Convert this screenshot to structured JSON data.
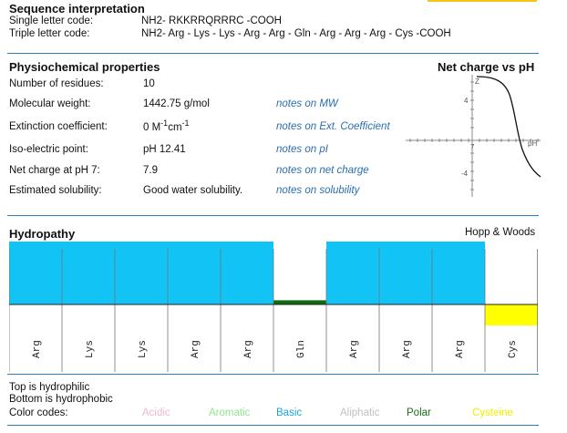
{
  "sequence": {
    "heading": "Sequence interpretation",
    "single_label": "Single letter code:",
    "single_value": "NH2- RKKRRQRRRC -COOH",
    "triple_label": "Triple letter code:",
    "triple_value": "NH2- Arg - Lys - Lys - Arg - Arg - Gln - Arg - Arg - Arg - Cys -COOH"
  },
  "physio": {
    "heading": "Physiochemical properties",
    "rows": [
      {
        "label": "Number of residues:",
        "value": "10",
        "note": ""
      },
      {
        "label": "Molecular weight:",
        "value": "1442.75 g/mol",
        "note": "notes on MW"
      },
      {
        "label": "Extinction coefficient:",
        "value_main": "0 M",
        "value_sup1": "-1",
        "value_mid": "cm",
        "value_sup2": "-1",
        "note": "notes on Ext. Coefficient"
      },
      {
        "label": "Iso-electric point:",
        "value": "pH 12.41",
        "note": "notes on pI"
      },
      {
        "label": "Net charge at pH 7:",
        "value": "7.9",
        "note": "notes on net charge"
      },
      {
        "label": "Estimated solubility:",
        "value": "Good water solubility.",
        "note": "notes on solubility"
      }
    ]
  },
  "charge_plot": {
    "title": "Net charge vs pH",
    "z_label": "Z",
    "ph_label": "pH",
    "tick_pos": "4",
    "tick_neg": "-4",
    "tick_x": "7"
  },
  "hydropathy": {
    "heading": "Hydropathy",
    "scale": "Hopp & Woods",
    "residues": [
      {
        "name": "Arg",
        "value": 3.0,
        "class": "basic"
      },
      {
        "name": "Lys",
        "value": 3.0,
        "class": "basic"
      },
      {
        "name": "Lys",
        "value": 3.0,
        "class": "basic"
      },
      {
        "name": "Arg",
        "value": 3.0,
        "class": "basic"
      },
      {
        "name": "Arg",
        "value": 3.0,
        "class": "basic"
      },
      {
        "name": "Gln",
        "value": 0.2,
        "class": "polar"
      },
      {
        "name": "Arg",
        "value": 3.0,
        "class": "basic"
      },
      {
        "name": "Arg",
        "value": 3.0,
        "class": "basic"
      },
      {
        "name": "Arg",
        "value": 3.0,
        "class": "basic"
      },
      {
        "name": "Cys",
        "value": -1.0,
        "class": "cysteine"
      }
    ],
    "top_note": "Top is hydrophilic",
    "bottom_note": "Bottom is hydrophobic",
    "codes_label": "Color codes:",
    "codes": [
      {
        "name": "Acidic",
        "color": "#f4b8c8"
      },
      {
        "name": "Aromatic",
        "color": "#8ee88e"
      },
      {
        "name": "Basic",
        "color": "#1aa5d9"
      },
      {
        "name": "Aliphatic",
        "color": "#c0c0c0"
      },
      {
        "name": "Polar",
        "color": "#1a6e1a"
      },
      {
        "name": "Cysteine",
        "color": "#f0f000"
      }
    ]
  },
  "colors": {
    "basic": "#12c3f5",
    "polar": "#0d6a0d",
    "cysteine": "#ffff00",
    "rule": "#2c7fb8",
    "note": "#2a6eb0"
  }
}
